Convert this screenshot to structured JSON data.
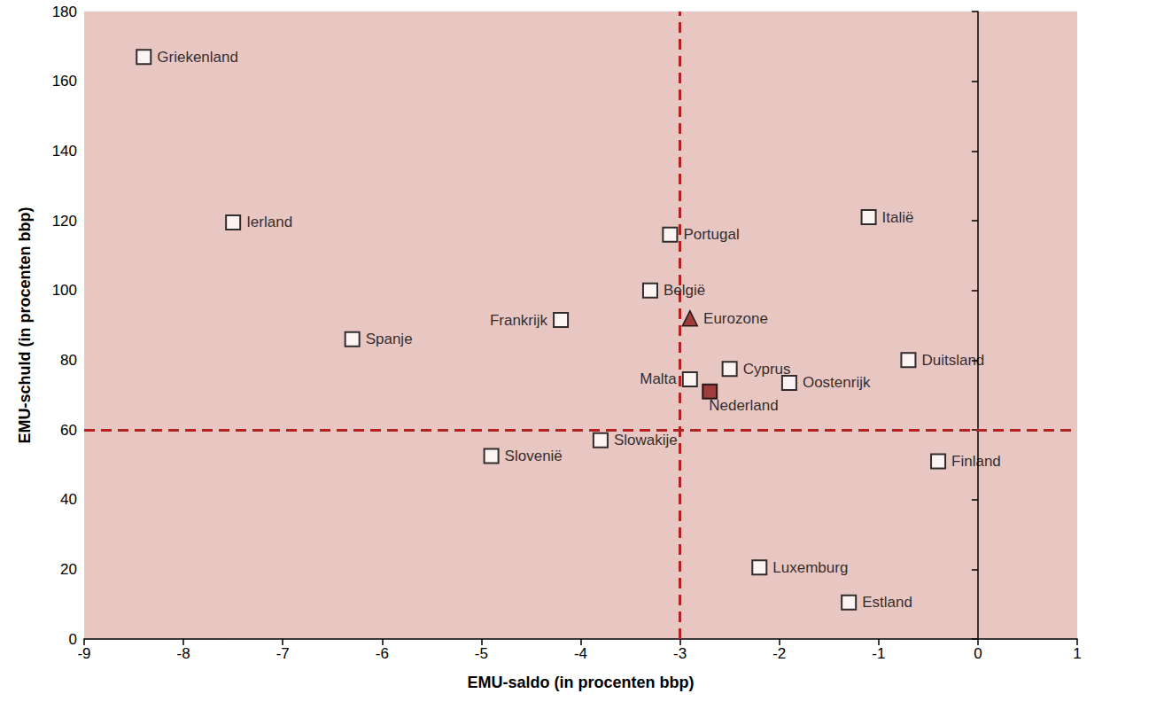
{
  "chart_data": {
    "type": "scatter",
    "x_label": "EMU-saldo (in procenten bbp)",
    "y_label": "EMU-schuld (in procenten bbp)",
    "xlim": [
      -9,
      1
    ],
    "xticks": [
      -9,
      -8,
      -7,
      -6,
      -5,
      -4,
      -3,
      -2,
      -1,
      0,
      1
    ],
    "ylim": [
      0,
      180
    ],
    "yticks": [
      0,
      20,
      40,
      60,
      80,
      100,
      120,
      140,
      160,
      180
    ],
    "grid": false,
    "x_reference": -3,
    "y_reference": 60,
    "series": [
      {
        "marker": "square",
        "color": "#ffffff",
        "labels": [
          "Griekenland",
          "Ierland",
          "Spanje",
          "Frankrijk",
          "Portugal",
          "België",
          "Malta",
          "Cyprus",
          "Oostenrijk",
          "Duitsland",
          "Italië",
          "Slowakije",
          "Slovenië",
          "Finland",
          "Luxemburg",
          "Estland"
        ],
        "x": [
          -8.4,
          -7.5,
          -6.3,
          -4.2,
          -3.1,
          -3.3,
          -2.9,
          -2.5,
          -1.9,
          -0.7,
          -1.1,
          -3.8,
          -4.9,
          -0.4,
          -2.2,
          -1.3
        ],
        "y": [
          167,
          119.5,
          86,
          91.5,
          116,
          100,
          74.5,
          77.5,
          73.5,
          80,
          121,
          57,
          52.5,
          51,
          20.5,
          10.5
        ]
      },
      {
        "marker": "triangle",
        "color": "#8b1a1a",
        "labels": [
          "Eurozone"
        ],
        "x": [
          -2.9
        ],
        "y": [
          92
        ]
      },
      {
        "marker": "square",
        "color": "#8b1a1a",
        "labels": [
          "Nederland"
        ],
        "x": [
          -2.7
        ],
        "y": [
          71
        ]
      }
    ]
  }
}
